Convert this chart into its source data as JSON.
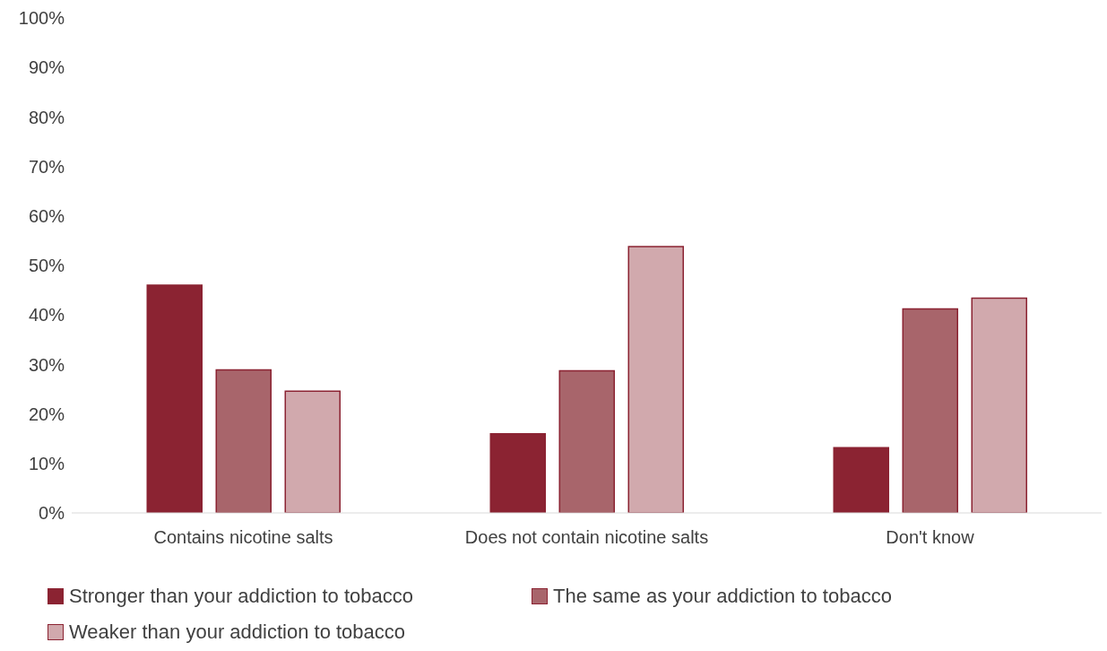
{
  "chart_data": {
    "type": "bar",
    "categories": [
      "Contains nicotine salts",
      "Does not contain nicotine salts",
      "Don't know"
    ],
    "series": [
      {
        "name": "Stronger than your addiction to tobacco",
        "color": "#8b2332",
        "values": [
          46,
          16,
          13.2
        ]
      },
      {
        "name": "The same as your addiction to tobacco",
        "color": "#a8656b",
        "values": [
          28.9,
          28.7,
          41.2
        ]
      },
      {
        "name": "Weaker than your addiction to tobacco",
        "color": "#d1a9ad",
        "values": [
          24.6,
          53.8,
          43.4
        ]
      }
    ],
    "ylim": [
      0,
      100
    ],
    "yticks": [
      {
        "value": 0,
        "label": "0%"
      },
      {
        "value": 10,
        "label": "10%"
      },
      {
        "value": 20,
        "label": "20%"
      },
      {
        "value": 30,
        "label": "30%"
      },
      {
        "value": 40,
        "label": "40%"
      },
      {
        "value": 50,
        "label": "50%"
      },
      {
        "value": 60,
        "label": "60%"
      },
      {
        "value": 70,
        "label": "70%"
      },
      {
        "value": 80,
        "label": "80%"
      },
      {
        "value": 90,
        "label": "90%"
      },
      {
        "value": 100,
        "label": "100%"
      }
    ],
    "grid": false,
    "legend": "bottom left"
  }
}
